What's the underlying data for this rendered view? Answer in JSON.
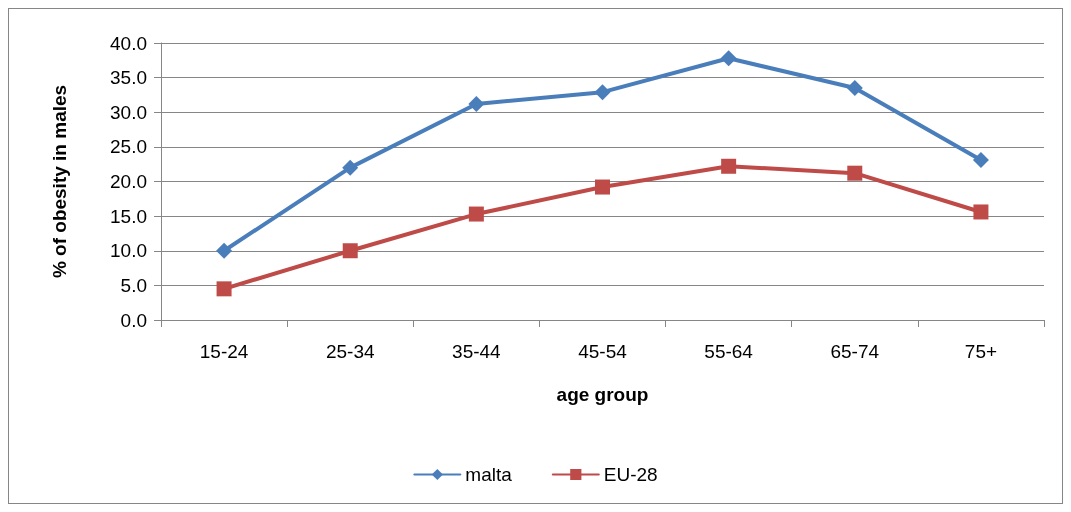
{
  "chart_data": {
    "type": "line",
    "xlabel": "age group",
    "ylabel": "% of obesity in males",
    "categories": [
      "15-24",
      "25-34",
      "35-44",
      "45-54",
      "55-64",
      "65-74",
      "75+"
    ],
    "series": [
      {
        "name": "malta",
        "color": "#4a7ebb",
        "marker": "diamond",
        "values": [
          10.0,
          22.0,
          31.2,
          32.9,
          37.8,
          33.5,
          23.1
        ]
      },
      {
        "name": "EU-28",
        "color": "#be4b48",
        "marker": "square",
        "values": [
          4.5,
          10.0,
          15.3,
          19.2,
          22.2,
          21.2,
          15.6
        ]
      }
    ],
    "ylim": [
      0,
      40
    ],
    "yticks": [
      {
        "value": 0,
        "label": "0.0"
      },
      {
        "value": 5,
        "label": "5.0"
      },
      {
        "value": 10,
        "label": "10.0"
      },
      {
        "value": 15,
        "label": "15.0"
      },
      {
        "value": 20,
        "label": "20.0"
      },
      {
        "value": 25,
        "label": "25.0"
      },
      {
        "value": 30,
        "label": "30.0"
      },
      {
        "value": 35,
        "label": "35.0"
      },
      {
        "value": 40,
        "label": "40.0"
      }
    ],
    "grid": "y",
    "legend": "bottom",
    "line_style": "solid"
  }
}
